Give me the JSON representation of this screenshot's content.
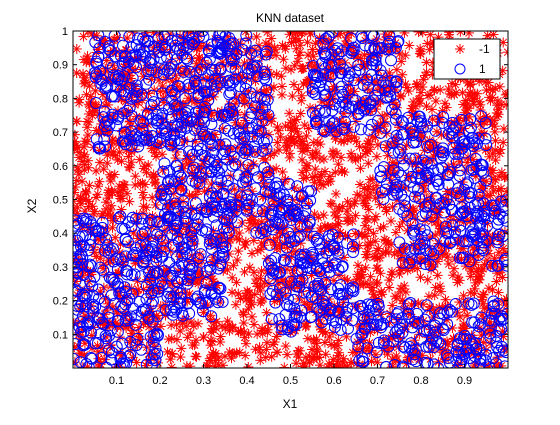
{
  "window": {
    "background": "#ffffff"
  },
  "chart_data": {
    "type": "scatter",
    "title": "KNN dataset",
    "xlabel": "X1",
    "ylabel": "X2",
    "xlim": [
      0,
      1
    ],
    "ylim": [
      0,
      1
    ],
    "xticks": [
      "0.1",
      "0.2",
      "0.3",
      "0.4",
      "0.5",
      "0.6",
      "0.7",
      "0.8",
      "0.9"
    ],
    "yticks": [
      "0.1",
      "0.2",
      "0.3",
      "0.4",
      "0.5",
      "0.6",
      "0.7",
      "0.8",
      "0.9",
      "1"
    ],
    "grid": false,
    "legend_position": "top-right",
    "colors": {
      "negative": "#ff0000",
      "positive": "#0000ff"
    },
    "series": [
      {
        "name": "-1",
        "marker": "asterisk",
        "color": "#ff0000",
        "density": "fills the unit square; visible where class 1 is absent"
      },
      {
        "name": "1",
        "marker": "circle",
        "color": "#0000ff",
        "regions": [
          {
            "x_range": [
              0.0,
              0.2
            ],
            "y_range": [
              0.0,
              0.45
            ]
          },
          {
            "x_range": [
              0.05,
              0.4
            ],
            "y_range": [
              0.65,
              1.0
            ]
          },
          {
            "x_range": [
              0.2,
              0.45
            ],
            "y_range": [
              0.55,
              0.95
            ]
          },
          {
            "x_range": [
              0.55,
              0.75
            ],
            "y_range": [
              0.7,
              1.0
            ]
          },
          {
            "x_range": [
              0.7,
              0.95
            ],
            "y_range": [
              0.5,
              0.75
            ]
          },
          {
            "x_range": [
              0.2,
              0.35
            ],
            "y_range": [
              0.15,
              0.55
            ]
          },
          {
            "x_range": [
              0.45,
              0.65
            ],
            "y_range": [
              0.1,
              0.4
            ]
          },
          {
            "x_range": [
              0.65,
              1.0
            ],
            "y_range": [
              0.0,
              0.2
            ]
          },
          {
            "x_range": [
              0.75,
              1.0
            ],
            "y_range": [
              0.3,
              0.5
            ]
          },
          {
            "x_range": [
              0.35,
              0.55
            ],
            "y_range": [
              0.4,
              0.55
            ]
          }
        ]
      }
    ]
  }
}
